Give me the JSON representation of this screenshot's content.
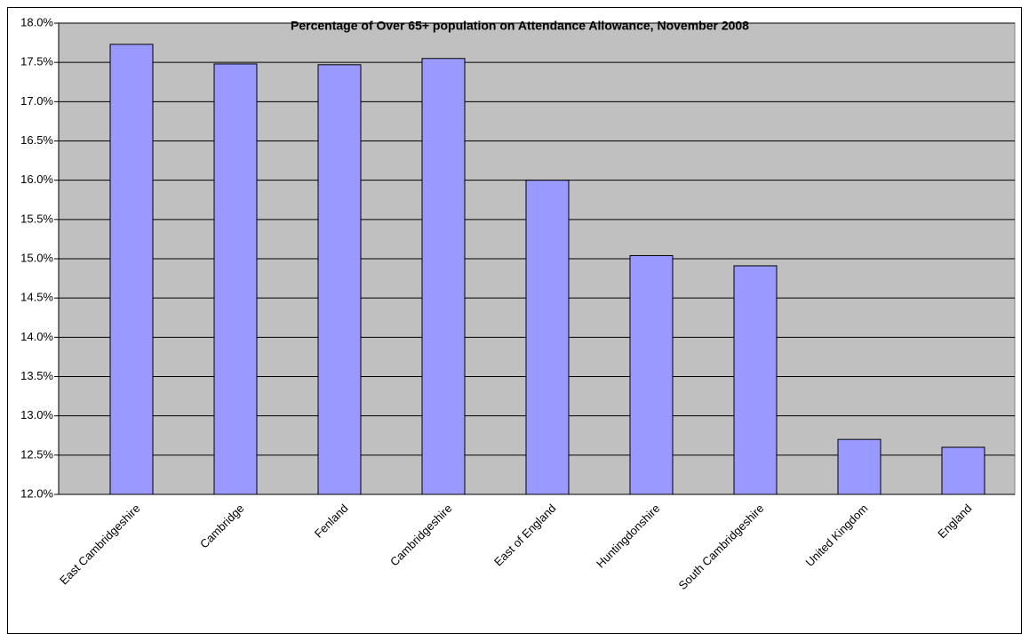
{
  "chart_data": {
    "type": "bar",
    "title": "Percentage of Over 65+ population on Attendance Allowance, November 2008",
    "categories": [
      "East Cambridgeshire",
      "Cambridge",
      "Fenland",
      "Cambridgeshire",
      "East of England",
      "Huntingdonshire",
      "South Cambridgeshire",
      "United Kingdom",
      "England"
    ],
    "values": [
      17.73,
      17.48,
      17.47,
      17.55,
      16.0,
      15.04,
      14.91,
      12.7,
      12.6
    ],
    "color": "#9999ff",
    "plot_background": "#c0c0c0",
    "ylim": [
      12.0,
      18.0
    ],
    "yticks": [
      {
        "value": 12.0,
        "label": "12.0%"
      },
      {
        "value": 12.5,
        "label": "12.5%"
      },
      {
        "value": 13.0,
        "label": "13.0%"
      },
      {
        "value": 13.5,
        "label": "13.5%"
      },
      {
        "value": 14.0,
        "label": "14.0%"
      },
      {
        "value": 14.5,
        "label": "14.5%"
      },
      {
        "value": 15.0,
        "label": "15.0%"
      },
      {
        "value": 15.5,
        "label": "15.5%"
      },
      {
        "value": 16.0,
        "label": "16.0%"
      },
      {
        "value": 16.5,
        "label": "16.5%"
      },
      {
        "value": 17.0,
        "label": "17.0%"
      },
      {
        "value": 17.5,
        "label": "17.5%"
      },
      {
        "value": 18.0,
        "label": "18.0%"
      }
    ],
    "grid": true
  }
}
